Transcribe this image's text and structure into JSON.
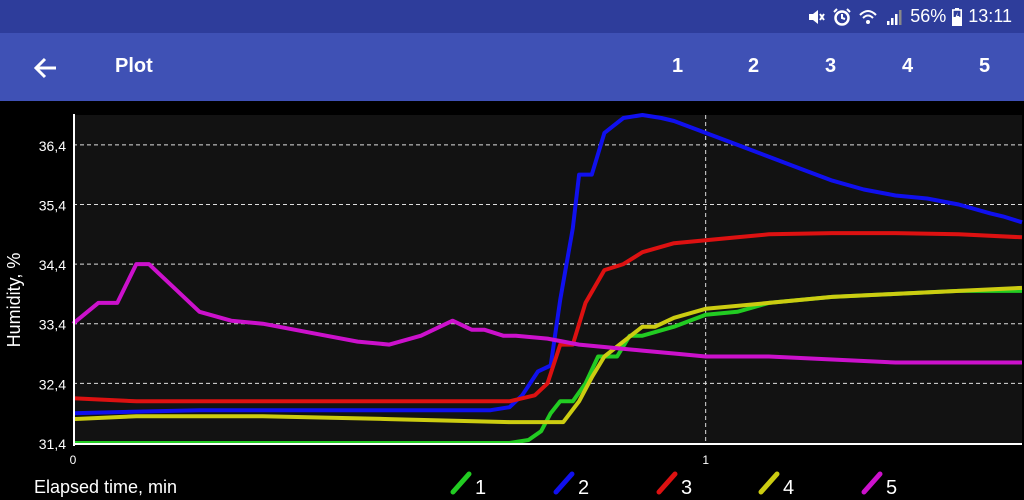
{
  "status": {
    "battery": "56%",
    "time": "13:11"
  },
  "toolbar": {
    "title": "Plot",
    "tabs": [
      "1",
      "2",
      "3",
      "4",
      "5"
    ]
  },
  "colors": {
    "status_bg": "#2e3d9b",
    "toolbar_bg": "#3f51b5",
    "plot_bg": "#121212"
  },
  "icons": [
    "mute-icon",
    "alarm-icon",
    "wifi-icon",
    "signal-icon",
    "battery-icon",
    "back-arrow-icon"
  ],
  "chart_data": {
    "type": "line",
    "xlabel": "Elapsed time, min",
    "ylabel": "Humidity, %",
    "x_ticks": [
      "0",
      "1"
    ],
    "y_ticks": [
      "31,4",
      "32,4",
      "33,4",
      "34,4",
      "35,4",
      "36,4"
    ],
    "xlim": [
      0,
      1.5
    ],
    "ylim": [
      31.4,
      36.9
    ],
    "grid": true,
    "legend_position": "bottom",
    "series": [
      {
        "name": "1",
        "color": "#22cc22",
        "x": [
          0,
          0.3,
          0.6,
          0.69,
          0.72,
          0.74,
          0.755,
          0.77,
          0.79,
          0.81,
          0.83,
          0.86,
          0.88,
          0.9,
          0.95,
          1.0,
          1.05,
          1.1,
          1.15,
          1.2,
          1.3,
          1.4,
          1.5
        ],
        "y": [
          31.4,
          31.4,
          31.4,
          31.4,
          31.45,
          31.6,
          31.9,
          32.1,
          32.1,
          32.4,
          32.85,
          32.85,
          33.2,
          33.2,
          33.35,
          33.55,
          33.6,
          33.75,
          33.8,
          33.85,
          33.9,
          33.95,
          33.95
        ]
      },
      {
        "name": "2",
        "color": "#1010ee",
        "x": [
          0,
          0.2,
          0.5,
          0.66,
          0.69,
          0.71,
          0.735,
          0.755,
          0.77,
          0.79,
          0.8,
          0.82,
          0.84,
          0.87,
          0.9,
          0.93,
          0.95,
          1.0,
          1.05,
          1.1,
          1.15,
          1.2,
          1.25,
          1.3,
          1.35,
          1.4,
          1.45,
          1.47,
          1.5
        ],
        "y": [
          31.9,
          31.95,
          31.95,
          31.95,
          32.0,
          32.2,
          32.6,
          32.7,
          33.8,
          35.0,
          35.9,
          35.9,
          36.6,
          36.85,
          36.9,
          36.85,
          36.8,
          36.6,
          36.4,
          36.2,
          36.0,
          35.8,
          35.65,
          35.55,
          35.5,
          35.4,
          35.25,
          35.2,
          35.1
        ]
      },
      {
        "name": "3",
        "color": "#dd1111",
        "x": [
          0,
          0.1,
          0.3,
          0.5,
          0.69,
          0.73,
          0.75,
          0.77,
          0.79,
          0.81,
          0.84,
          0.87,
          0.9,
          0.95,
          1.0,
          1.05,
          1.1,
          1.2,
          1.3,
          1.4,
          1.5
        ],
        "y": [
          32.15,
          32.1,
          32.1,
          32.1,
          32.1,
          32.2,
          32.4,
          33.05,
          33.05,
          33.75,
          34.3,
          34.4,
          34.6,
          34.75,
          34.8,
          34.85,
          34.9,
          34.92,
          34.92,
          34.9,
          34.85
        ]
      },
      {
        "name": "4",
        "color": "#cccc11",
        "x": [
          0,
          0.1,
          0.3,
          0.5,
          0.69,
          0.72,
          0.775,
          0.8,
          0.82,
          0.84,
          0.87,
          0.9,
          0.92,
          0.95,
          1.0,
          1.1,
          1.2,
          1.3,
          1.4,
          1.5
        ],
        "y": [
          31.8,
          31.85,
          31.85,
          31.8,
          31.75,
          31.75,
          31.75,
          32.1,
          32.5,
          32.85,
          33.1,
          33.35,
          33.35,
          33.5,
          33.65,
          33.75,
          33.85,
          33.9,
          33.95,
          34.0
        ]
      },
      {
        "name": "5",
        "color": "#cc11cc",
        "x": [
          0,
          0.04,
          0.07,
          0.1,
          0.12,
          0.13,
          0.16,
          0.2,
          0.25,
          0.3,
          0.35,
          0.4,
          0.45,
          0.5,
          0.55,
          0.6,
          0.63,
          0.65,
          0.68,
          0.7,
          0.75,
          0.8,
          0.85,
          0.9,
          0.95,
          1.0,
          1.1,
          1.2,
          1.3,
          1.4,
          1.5
        ],
        "y": [
          33.4,
          33.75,
          33.75,
          34.4,
          34.4,
          34.3,
          34.0,
          33.6,
          33.45,
          33.4,
          33.3,
          33.2,
          33.1,
          33.05,
          33.2,
          33.45,
          33.3,
          33.3,
          33.2,
          33.2,
          33.15,
          33.05,
          33.0,
          32.95,
          32.9,
          32.85,
          32.85,
          32.8,
          32.75,
          32.75,
          32.75
        ]
      }
    ]
  }
}
